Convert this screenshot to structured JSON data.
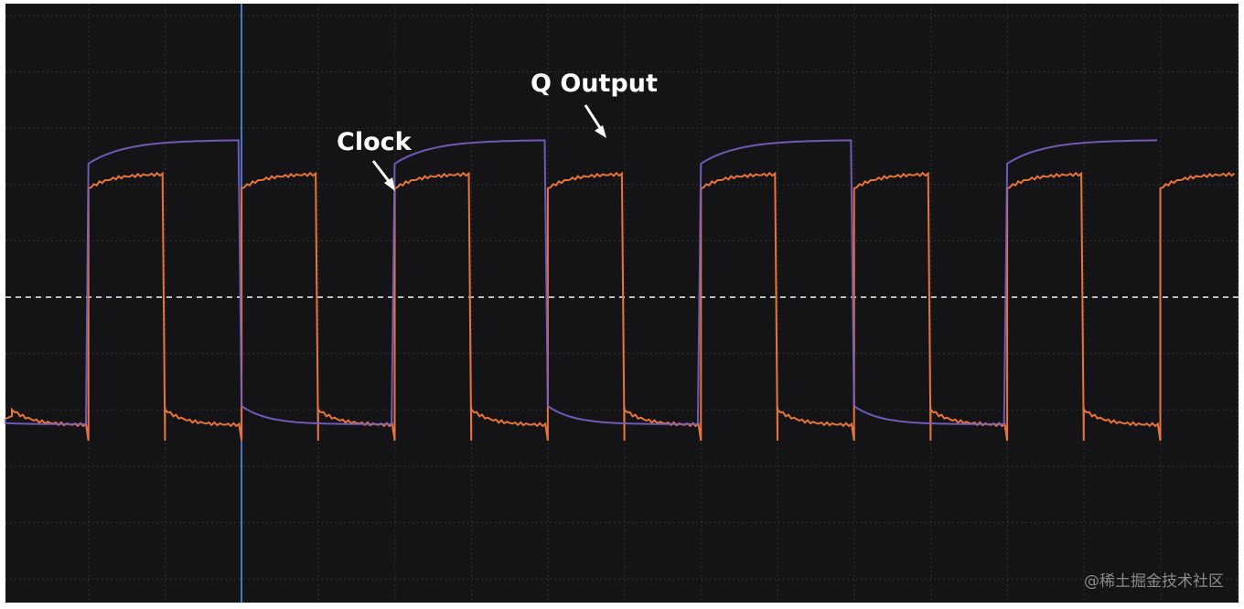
{
  "annotations": {
    "clock": "Clock",
    "q_output": "Q Output"
  },
  "watermark": "@稀土掘金技术社区"
}
